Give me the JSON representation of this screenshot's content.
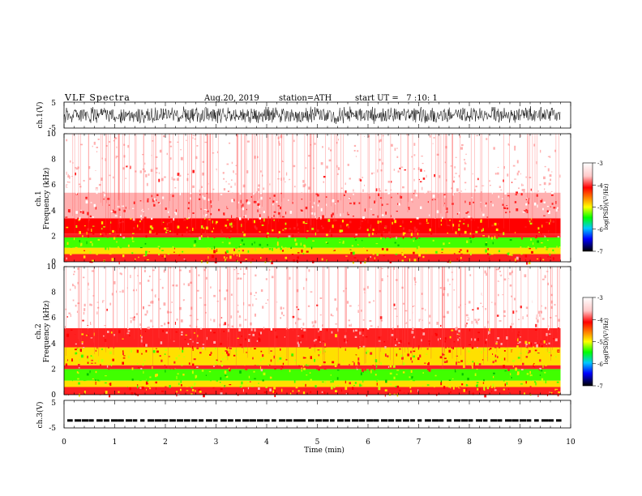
{
  "header": {
    "title": "VLF Spectra",
    "date": "Aug.20, 2019",
    "station": "station=ATH",
    "start": "start UT =   7 :10: 1"
  },
  "chart_data": [
    {
      "type": "line",
      "panel": "ch1-waveform",
      "ylabel": "ch.1(V)",
      "ylim": [
        -5,
        5
      ],
      "yticks": [
        "5",
        "-5"
      ],
      "xlim": [
        0,
        10
      ],
      "description_values": {
        "amplitude_V": 3.5,
        "data_end_min": 9.8
      }
    },
    {
      "type": "heatmap",
      "panel": "ch1-spectrogram",
      "ylabel": "ch.1\nFrequency (kHz)",
      "ylabel_line1": "ch.1",
      "ylabel_line2": "Frequency (kHz)",
      "ylim": [
        0,
        10
      ],
      "yticks": [
        "0",
        "2",
        "4",
        "6",
        "8",
        "10"
      ],
      "colorbar_label": "log(PSD)(V²/Hz)",
      "colorbar_ticks": [
        "-3",
        "-4",
        "-5",
        "-6",
        "-7"
      ],
      "clim": [
        -7,
        -3
      ],
      "bands": [
        {
          "from": 0.0,
          "to": 0.6,
          "level": -4.1
        },
        {
          "from": 0.6,
          "to": 1.1,
          "level": -4.5
        },
        {
          "from": 1.1,
          "to": 1.9,
          "level": -4.9
        },
        {
          "from": 1.9,
          "to": 2.2,
          "level": -4.0
        },
        {
          "from": 2.2,
          "to": 3.4,
          "level": -4.3
        },
        {
          "from": 3.4,
          "to": 5.4,
          "level": -3.6
        },
        {
          "from": 5.4,
          "to": 7.5,
          "level": -3.3
        },
        {
          "from": 7.5,
          "to": 10.0,
          "level": -3.1
        }
      ]
    },
    {
      "type": "heatmap",
      "panel": "ch2-spectrogram",
      "ylabel": "ch.2\nFrequency (kHz)",
      "ylabel_line1": "ch.2",
      "ylabel_line2": "Frequency (kHz)",
      "ylim": [
        0,
        10
      ],
      "yticks": [
        "0",
        "2",
        "4",
        "6",
        "8",
        "10"
      ],
      "colorbar_label": "log(PSD)(V²/Hz)",
      "colorbar_ticks": [
        "-3",
        "-4",
        "-5",
        "-6",
        "-7"
      ],
      "clim": [
        -7,
        -3
      ],
      "bands": [
        {
          "from": 0.0,
          "to": 0.6,
          "level": -4.1
        },
        {
          "from": 0.6,
          "to": 1.1,
          "level": -4.5
        },
        {
          "from": 1.1,
          "to": 2.0,
          "level": -4.9
        },
        {
          "from": 2.0,
          "to": 2.3,
          "level": -4.0
        },
        {
          "from": 2.3,
          "to": 3.7,
          "level": -4.35
        },
        {
          "from": 3.7,
          "to": 5.2,
          "level": -3.9
        },
        {
          "from": 5.2,
          "to": 7.3,
          "level": -3.3
        },
        {
          "from": 7.3,
          "to": 10.0,
          "level": -3.1
        }
      ]
    },
    {
      "type": "line",
      "panel": "ch3-waveform",
      "ylabel": "ch.3(V)",
      "ylim": [
        -5,
        5
      ],
      "yticks": [
        "5",
        "-5"
      ],
      "xlabel": "Time (min)",
      "xlim": [
        0,
        10
      ],
      "xticks": [
        "0",
        "1",
        "2",
        "3",
        "4",
        "5",
        "6",
        "7",
        "8",
        "9",
        "10"
      ],
      "description_values": {
        "baseline_V": -2.3,
        "data_end_min": 9.8
      }
    }
  ],
  "colors": {
    "white": "#ffffff",
    "red": "#ff0000",
    "yellow": "#ffff00",
    "green": "#00ff00",
    "blue": "#0000ff",
    "black": "#000000"
  }
}
